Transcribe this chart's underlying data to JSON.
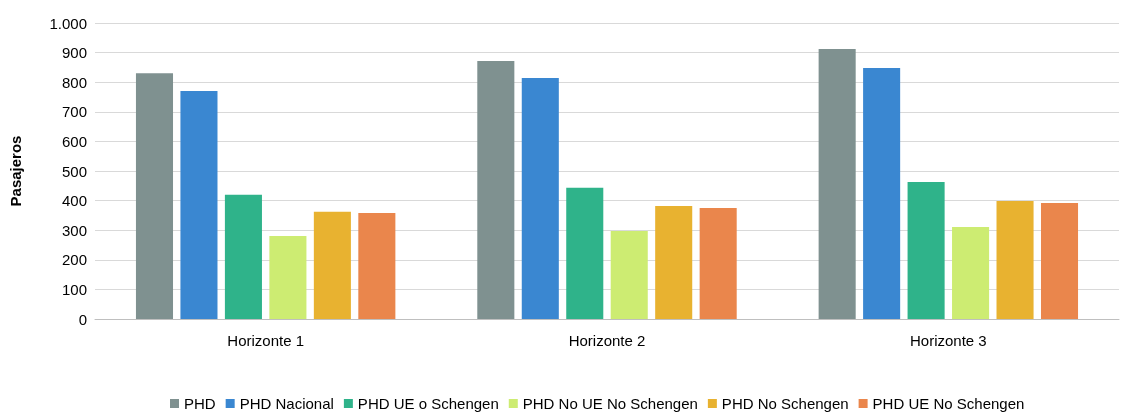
{
  "chart_data": {
    "type": "bar",
    "ylabel": "Pasajeros",
    "categories": [
      "Horizonte 1",
      "Horizonte 2",
      "Horizonte 3"
    ],
    "series": [
      {
        "name": "PHD",
        "color": "#7f9190",
        "values": [
          830,
          872,
          912
        ]
      },
      {
        "name": "PHD Nacional",
        "color": "#3a87d1",
        "values": [
          770,
          814,
          848
        ]
      },
      {
        "name": "PHD UE o Schengen",
        "color": "#2fb38a",
        "values": [
          420,
          443,
          463
        ]
      },
      {
        "name": "PHD No UE No Schengen",
        "color": "#cdec72",
        "values": [
          280,
          297,
          311
        ]
      },
      {
        "name": "PHD No Schengen",
        "color": "#e8b230",
        "values": [
          362,
          382,
          399
        ]
      },
      {
        "name": "PHD UE No Schengen",
        "color": "#ea864c",
        "values": [
          358,
          375,
          392
        ]
      }
    ],
    "ylim": [
      0,
      1000
    ],
    "yticks": [
      0,
      100,
      200,
      300,
      400,
      500,
      600,
      700,
      800,
      900,
      {
        "value": 1000,
        "label": "1.000"
      }
    ],
    "grid": "y",
    "legend": "bottom"
  }
}
